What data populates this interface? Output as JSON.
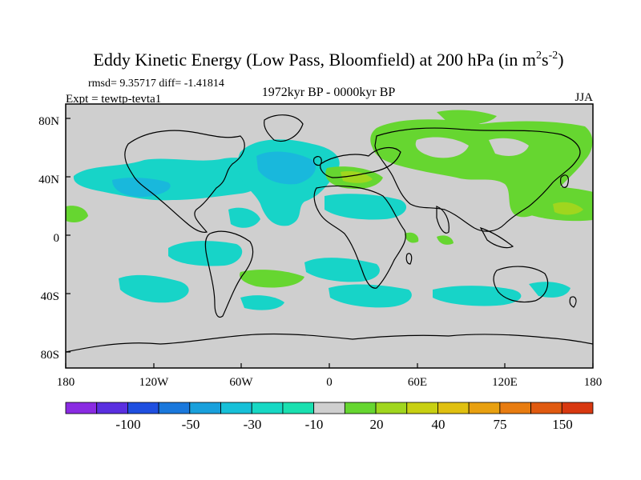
{
  "title": {
    "main": "Eddy Kinetic Energy (Low Pass, Bloomfield) at 200 hPa (in m",
    "sup1": "2",
    "mid": "s",
    "sup2": "-2",
    "close": ")"
  },
  "stats": "rmsd= 9.35717  diff= -1.41814",
  "expt": "Expt = tewtp-tevta1",
  "period": "1972kyr BP - 0000kyr BP",
  "season": "JJA",
  "lat_ticks": [
    "80N",
    "40N",
    "0",
    "40S",
    "80S"
  ],
  "lon_ticks": [
    "180",
    "120W",
    "60W",
    "0",
    "60E",
    "120E",
    "180"
  ],
  "colorbar": {
    "colors": [
      "#8a2be2",
      "#5a2fe0",
      "#1f4fe0",
      "#1a78dc",
      "#19a0dc",
      "#17c0d8",
      "#17d8c4",
      "#1ae0b0",
      "#cfcfcf",
      "#66d630",
      "#a0d61e",
      "#c8d012",
      "#e0c010",
      "#e8a010",
      "#e87c10",
      "#e05a10",
      "#d83810"
    ],
    "labels": [
      "-100",
      "-50",
      "-30",
      "-10",
      "20",
      "40",
      "75",
      "150"
    ]
  },
  "palette": {
    "land_bg": "#cfcfcf",
    "cyan": "#17d4c8",
    "cyan_deep": "#19b8dc",
    "green": "#66d630",
    "yellowgreen": "#a0d61e"
  }
}
